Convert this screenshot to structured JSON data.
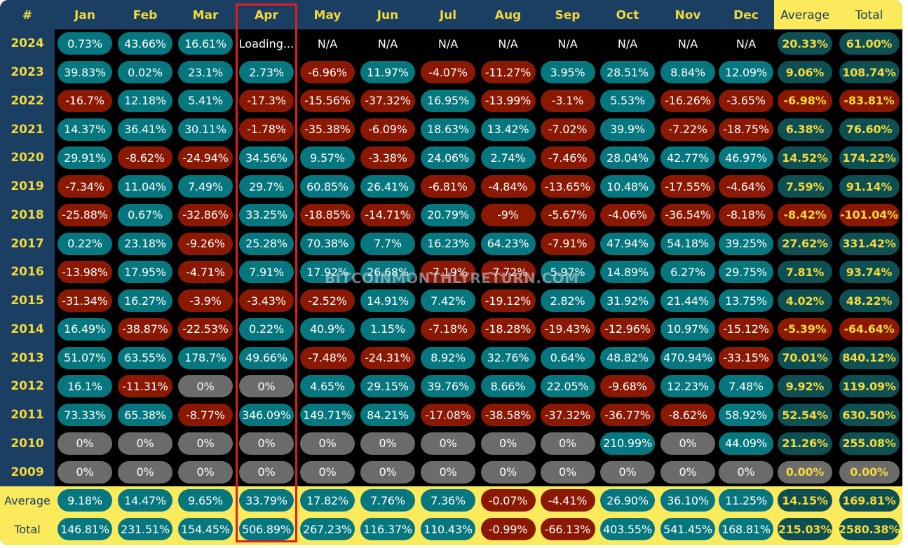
{
  "header": {
    "corner": "#",
    "months": [
      "Jan",
      "Feb",
      "Mar",
      "Apr",
      "May",
      "Jun",
      "Jul",
      "Aug",
      "Sep",
      "Oct",
      "Nov",
      "Dec"
    ],
    "average": "Average",
    "total": "Total"
  },
  "rows": [
    {
      "year": "2024",
      "months": [
        "0.73%",
        "43.66%",
        "16.61%",
        "Loading...",
        "N/A",
        "N/A",
        "N/A",
        "N/A",
        "N/A",
        "N/A",
        "N/A",
        "N/A"
      ],
      "average": "20.33%",
      "total": "61.00%"
    },
    {
      "year": "2023",
      "months": [
        "39.83%",
        "0.02%",
        "23.1%",
        "2.73%",
        "-6.96%",
        "11.97%",
        "-4.07%",
        "-11.27%",
        "3.95%",
        "28.51%",
        "8.84%",
        "12.09%"
      ],
      "average": "9.06%",
      "total": "108.74%"
    },
    {
      "year": "2022",
      "months": [
        "-16.7%",
        "12.18%",
        "5.41%",
        "-17.3%",
        "-15.56%",
        "-37.32%",
        "16.95%",
        "-13.99%",
        "-3.1%",
        "5.53%",
        "-16.26%",
        "-3.65%"
      ],
      "average": "-6.98%",
      "total": "-83.81%"
    },
    {
      "year": "2021",
      "months": [
        "14.37%",
        "36.41%",
        "30.11%",
        "-1.78%",
        "-35.38%",
        "-6.09%",
        "18.63%",
        "13.42%",
        "-7.02%",
        "39.9%",
        "-7.22%",
        "-18.75%"
      ],
      "average": "6.38%",
      "total": "76.60%"
    },
    {
      "year": "2020",
      "months": [
        "29.91%",
        "-8.62%",
        "-24.94%",
        "34.56%",
        "9.57%",
        "-3.38%",
        "24.06%",
        "2.74%",
        "-7.46%",
        "28.04%",
        "42.77%",
        "46.97%"
      ],
      "average": "14.52%",
      "total": "174.22%"
    },
    {
      "year": "2019",
      "months": [
        "-7.34%",
        "11.04%",
        "7.49%",
        "29.7%",
        "60.85%",
        "26.41%",
        "-6.81%",
        "-4.84%",
        "-13.65%",
        "10.48%",
        "-17.55%",
        "-4.64%"
      ],
      "average": "7.59%",
      "total": "91.14%"
    },
    {
      "year": "2018",
      "months": [
        "-25.88%",
        "0.67%",
        "-32.86%",
        "33.25%",
        "-18.85%",
        "-14.71%",
        "20.79%",
        "-9%",
        "-5.67%",
        "-4.06%",
        "-36.54%",
        "-8.18%"
      ],
      "average": "-8.42%",
      "total": "-101.04%"
    },
    {
      "year": "2017",
      "months": [
        "0.22%",
        "23.18%",
        "-9.26%",
        "25.28%",
        "70.38%",
        "7.7%",
        "16.23%",
        "64.23%",
        "-7.91%",
        "47.94%",
        "54.18%",
        "39.25%"
      ],
      "average": "27.62%",
      "total": "331.42%"
    },
    {
      "year": "2016",
      "months": [
        "-13.98%",
        "17.95%",
        "-4.71%",
        "7.91%",
        "17.92%",
        "26.68%",
        "-7.19%",
        "-7.72%",
        "5.97%",
        "14.89%",
        "6.27%",
        "29.75%"
      ],
      "average": "7.81%",
      "total": "93.74%"
    },
    {
      "year": "2015",
      "months": [
        "-31.34%",
        "16.27%",
        "-3.9%",
        "-3.43%",
        "-2.52%",
        "14.91%",
        "7.42%",
        "-19.12%",
        "2.82%",
        "31.92%",
        "21.44%",
        "13.75%"
      ],
      "average": "4.02%",
      "total": "48.22%"
    },
    {
      "year": "2014",
      "months": [
        "16.49%",
        "-38.87%",
        "-22.53%",
        "0.22%",
        "40.9%",
        "1.15%",
        "-7.18%",
        "-18.28%",
        "-19.43%",
        "-12.96%",
        "10.97%",
        "-15.12%"
      ],
      "average": "-5.39%",
      "total": "-64.64%"
    },
    {
      "year": "2013",
      "months": [
        "51.07%",
        "63.55%",
        "178.7%",
        "49.66%",
        "-7.48%",
        "-24.31%",
        "8.92%",
        "32.76%",
        "0.64%",
        "48.82%",
        "470.94%",
        "-33.15%"
      ],
      "average": "70.01%",
      "total": "840.12%"
    },
    {
      "year": "2012",
      "months": [
        "16.1%",
        "-11.31%",
        "0%",
        "0%",
        "4.65%",
        "29.15%",
        "39.76%",
        "8.66%",
        "22.05%",
        "-9.68%",
        "12.23%",
        "7.48%"
      ],
      "average": "9.92%",
      "total": "119.09%"
    },
    {
      "year": "2011",
      "months": [
        "73.33%",
        "65.38%",
        "-8.77%",
        "346.09%",
        "149.71%",
        "84.21%",
        "-17.08%",
        "-38.58%",
        "-37.32%",
        "-36.77%",
        "-8.62%",
        "58.92%"
      ],
      "average": "52.54%",
      "total": "630.50%"
    },
    {
      "year": "2010",
      "months": [
        "0%",
        "0%",
        "0%",
        "0%",
        "0%",
        "0%",
        "0%",
        "0%",
        "0%",
        "210.99%",
        "0%",
        "44.09%"
      ],
      "average": "21.26%",
      "total": "255.08%"
    },
    {
      "year": "2009",
      "months": [
        "0%",
        "0%",
        "0%",
        "0%",
        "0%",
        "0%",
        "0%",
        "0%",
        "0%",
        "0%",
        "0%",
        "0%"
      ],
      "average": "0.00%",
      "total": "0.00%"
    }
  ],
  "footer": {
    "average": {
      "label": "Average",
      "months": [
        "9.18%",
        "14.47%",
        "9.65%",
        "33.79%",
        "17.82%",
        "7.76%",
        "7.36%",
        "-0.07%",
        "-4.41%",
        "26.90%",
        "36.10%",
        "11.25%"
      ],
      "average": "14.15%",
      "total": "169.81%"
    },
    "total": {
      "label": "Total",
      "months": [
        "146.81%",
        "231.51%",
        "154.45%",
        "506.89%",
        "267.23%",
        "116.37%",
        "110.43%",
        "-0.99%",
        "-66.13%",
        "403.55%",
        "541.45%",
        "168.81%"
      ],
      "average": "215.03%",
      "total": "2580.38%"
    }
  },
  "watermark": "BITCOINMONTHLYRETURN.COM",
  "colors": {
    "header_bg": "#1b3e63",
    "yellow": "#fbea5b",
    "gold_text": "#f4d93a",
    "positive": "#06777f",
    "negative": "#8a1803",
    "zero": "#6b6b6b",
    "highlight": "#e21d1d"
  }
}
